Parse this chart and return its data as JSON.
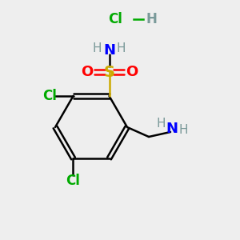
{
  "background_color": "#eeeeee",
  "atom_colors": {
    "C": "#000000",
    "H": "#7a9a9a",
    "N": "#0000ff",
    "O": "#ff0000",
    "S": "#ccaa00",
    "Cl": "#00aa00"
  },
  "bond_color": "#000000",
  "figsize": [
    3.0,
    3.0
  ],
  "dpi": 100
}
